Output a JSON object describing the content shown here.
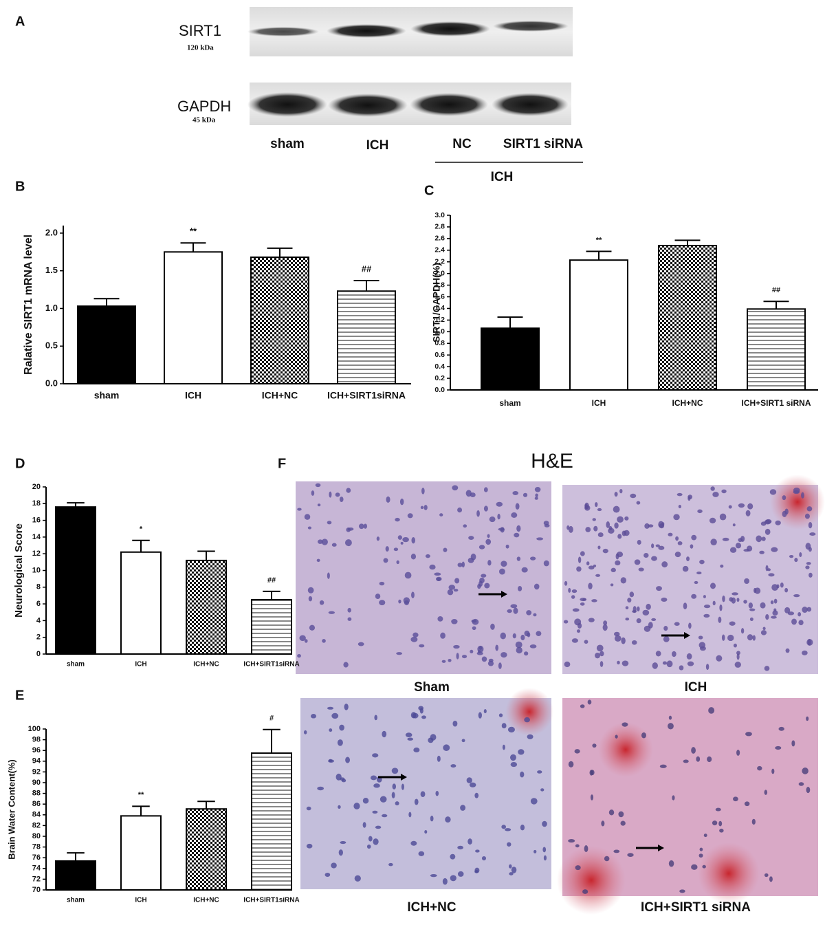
{
  "panel_letters": [
    "A",
    "B",
    "C",
    "D",
    "E",
    "F"
  ],
  "blot": {
    "bands": [
      {
        "label": "SIRT1",
        "size": "120 kDa"
      },
      {
        "label": "GAPDH",
        "size": "45 kDa"
      }
    ],
    "lanes": [
      "sham",
      "ICH",
      "NC",
      "SIRT1 siRNA"
    ],
    "group": "ICH"
  },
  "histology": {
    "title": "H&E",
    "images": [
      "Sham",
      "ICH",
      "ICH+NC",
      "ICH+SIRT1 siRNA"
    ]
  },
  "chart_data": [
    {
      "type": "bar",
      "ylabel": "Ralative SIRT1 mRNA level",
      "categories": [
        "sham",
        "ICH",
        "ICH+NC",
        "ICH+SIRT1siRNA"
      ],
      "values": [
        1.03,
        1.75,
        1.68,
        1.23
      ],
      "errors": [
        0.1,
        0.12,
        0.12,
        0.14
      ],
      "annotations": [
        null,
        "**",
        null,
        "##"
      ],
      "patterns": [
        "solid",
        "open",
        "checker",
        "hlines"
      ],
      "ylim": [
        0,
        2.1
      ],
      "yticks": [
        {
          "value": 0,
          "label": "0.0"
        },
        0.5,
        {
          "value": 1,
          "label": "1.0"
        },
        1.5,
        {
          "value": 2,
          "label": "2.0"
        }
      ]
    },
    {
      "type": "bar",
      "ylabel": "SIRT1/GAPDH(%)",
      "categories": [
        "sham",
        "ICH",
        "ICH+NC",
        "ICH+SIRT1 siRNA"
      ],
      "values": [
        1.06,
        2.23,
        2.48,
        1.39
      ],
      "errors": [
        0.19,
        0.15,
        0.09,
        0.13
      ],
      "annotations": [
        null,
        "**",
        null,
        "##"
      ],
      "patterns": [
        "solid",
        "open",
        "checker",
        "hlines"
      ],
      "ylim": [
        0,
        3
      ],
      "yticks": [
        {
          "value": 0,
          "label": "0.0"
        },
        0.2,
        0.4,
        0.6,
        0.8,
        {
          "value": 1,
          "label": "1.0"
        },
        1.2,
        1.4,
        1.6,
        1.8,
        {
          "value": 2,
          "label": "2.0"
        },
        2.2,
        2.4,
        2.6,
        2.8,
        {
          "value": 3,
          "label": "3.0"
        }
      ]
    },
    {
      "type": "bar",
      "ylabel": "Neurological Score",
      "categories": [
        "sham",
        "ICH",
        "ICH+NC",
        "ICH+SIRT1siRNA"
      ],
      "values": [
        17.6,
        12.2,
        11.2,
        6.5
      ],
      "errors": [
        0.5,
        1.4,
        1.1,
        1.0
      ],
      "annotations": [
        null,
        "*",
        null,
        "##"
      ],
      "patterns": [
        "solid",
        "open",
        "checker",
        "hlines"
      ],
      "ylim": [
        0,
        20
      ],
      "yticks": [
        0,
        2,
        4,
        6,
        8,
        10,
        12,
        14,
        16,
        18,
        20
      ]
    },
    {
      "type": "bar",
      "ylabel": "Brain Water Content(%)",
      "categories": [
        "sham",
        "ICH",
        "ICH+NC",
        "ICH+SIRT1siRNA"
      ],
      "values": [
        75.4,
        83.8,
        85.1,
        95.5
      ],
      "errors": [
        1.5,
        1.8,
        1.4,
        4.4
      ],
      "annotations": [
        null,
        "**",
        null,
        "#"
      ],
      "patterns": [
        "solid",
        "open",
        "checker",
        "hlines"
      ],
      "ylim": [
        70,
        100
      ],
      "yticks": [
        70,
        72,
        74,
        76,
        78,
        80,
        82,
        84,
        86,
        88,
        90,
        92,
        94,
        96,
        98,
        100
      ]
    }
  ]
}
